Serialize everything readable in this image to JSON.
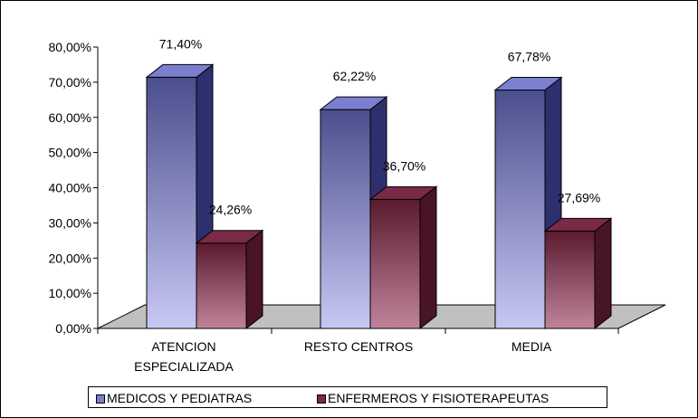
{
  "chart_data": {
    "type": "bar",
    "style": "3d-clustered-column",
    "categories": [
      [
        "ATENCION",
        "ESPECIALIZADA"
      ],
      [
        "RESTO CENTROS"
      ],
      [
        "MEDIA"
      ]
    ],
    "series": [
      {
        "name": "MEDICOS Y PEDIATRAS",
        "values": [
          71.4,
          62.22,
          67.78
        ],
        "labels": [
          "71,40%",
          "62,22%",
          "67,78%"
        ],
        "color_top": "#4a4e8c",
        "color_bottom": "#c8c8f4",
        "color_side": "#2e2f6e",
        "color_cap": "#7b7fd0"
      },
      {
        "name": "ENFERMEROS Y FISIOTERAPEUTAS",
        "values": [
          24.26,
          36.7,
          27.69
        ],
        "labels": [
          "24,26%",
          "36,70%",
          "27,69%"
        ],
        "color_top": "#5a1a30",
        "color_bottom": "#c0849a",
        "color_side": "#4a1428",
        "color_cap": "#7a2a48"
      }
    ],
    "y_ticks": [
      "0,00%",
      "10,00%",
      "20,00%",
      "30,00%",
      "40,00%",
      "50,00%",
      "60,00%",
      "70,00%",
      "80,00%"
    ],
    "ylim": [
      0,
      80
    ],
    "grid": false,
    "legend_position": "bottom",
    "floor_color": "#c0c0c0"
  }
}
